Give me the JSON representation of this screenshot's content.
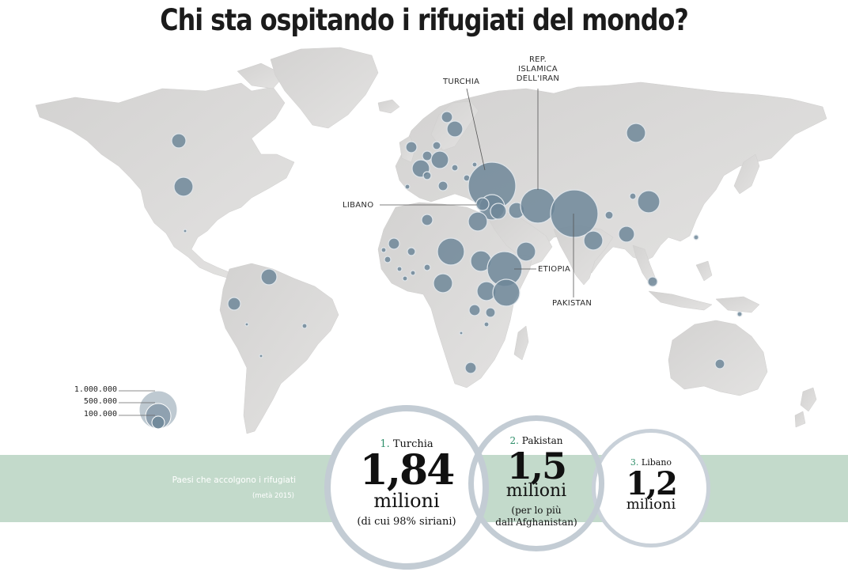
{
  "title": "Chi sta ospitando i rifugiati del mondo?",
  "map_labels": {
    "turchia": "TURCHIA",
    "iran": [
      "REP.",
      "ISLAMICA",
      "DELL'IRAN"
    ],
    "libano": "LIBANO",
    "etiopia": "ETIOPIA",
    "pakistan": "PAKISTAN"
  },
  "legend": {
    "scale": [
      "1.000.000",
      "500.000",
      "100.000"
    ]
  },
  "band": {
    "title": "Paesi che accolgono i rifugiati",
    "subtitle": "(metà 2015)"
  },
  "ranking": [
    {
      "rank": "1.",
      "country": "Turchia",
      "value": "1,84",
      "unit": "milioni",
      "note": "(di cui 98% siriani)"
    },
    {
      "rank": "2.",
      "country": "Pakistan",
      "value": "1,5",
      "unit": "milioni",
      "note_lines": [
        "(per lo più",
        "dall'Afghanistan)"
      ]
    },
    {
      "rank": "3.",
      "country": "Libano",
      "value": "1,2",
      "unit": "milioni"
    }
  ],
  "colors": {
    "land": "#d9d8d7",
    "bubble": "#6f8799",
    "ring": "#c3ccd4",
    "band": "#c3dacb",
    "rank_number": "#2f8f6a"
  }
}
